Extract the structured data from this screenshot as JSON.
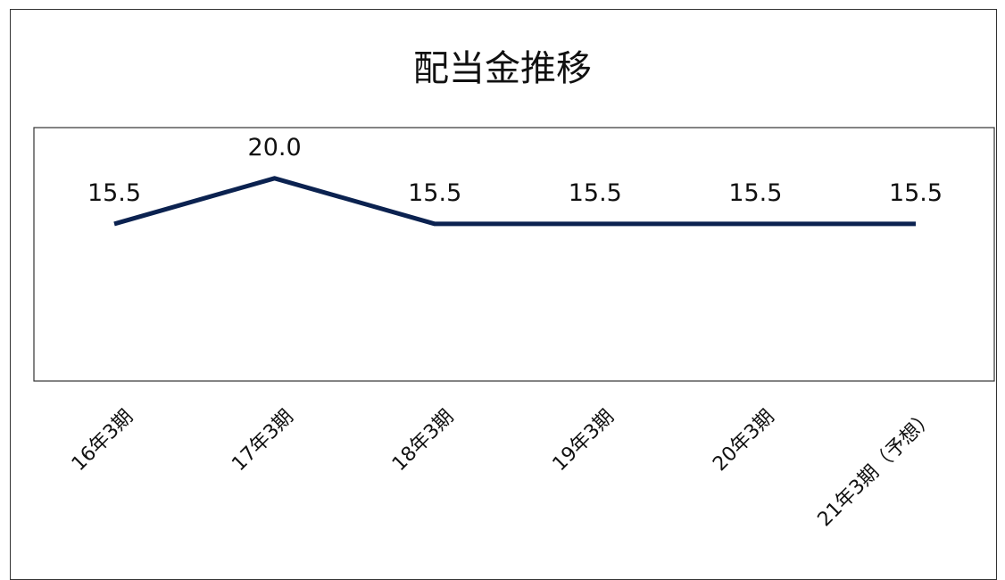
{
  "chart_data": {
    "type": "line",
    "title": "配当金推移",
    "categories": [
      "16年3期",
      "17年3期",
      "18年3期",
      "19年3期",
      "20年3期",
      "21年3期（予想）"
    ],
    "series": [
      {
        "values": [
          15.5,
          20.0,
          15.5,
          15.5,
          15.5,
          15.5
        ],
        "labels": [
          "15.5",
          "20.0",
          "15.5",
          "15.5",
          "15.5",
          "15.5"
        ]
      }
    ],
    "ylim": [
      0,
      25
    ],
    "grid": false,
    "legend": "none",
    "line_color": "#0b2250"
  }
}
